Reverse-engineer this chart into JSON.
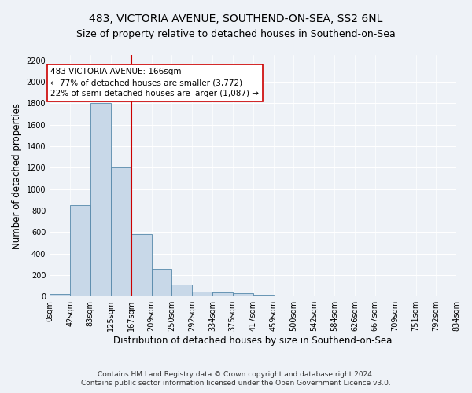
{
  "title1": "483, VICTORIA AVENUE, SOUTHEND-ON-SEA, SS2 6NL",
  "title2": "Size of property relative to detached houses in Southend-on-Sea",
  "xlabel": "Distribution of detached houses by size in Southend-on-Sea",
  "ylabel": "Number of detached properties",
  "footnote1": "Contains HM Land Registry data © Crown copyright and database right 2024.",
  "footnote2": "Contains public sector information licensed under the Open Government Licence v3.0.",
  "bar_edges": [
    0,
    42,
    83,
    125,
    167,
    209,
    250,
    292,
    334,
    375,
    417,
    459,
    500,
    542,
    584,
    626,
    667,
    709,
    751,
    792,
    834
  ],
  "bar_heights": [
    25,
    850,
    1800,
    1200,
    580,
    255,
    115,
    45,
    40,
    30,
    18,
    12,
    0,
    0,
    0,
    0,
    0,
    0,
    0,
    0
  ],
  "bar_color": "#c8d8e8",
  "bar_edgecolor": "#5588aa",
  "vline_x": 167,
  "vline_color": "#cc0000",
  "annotation_text": "483 VICTORIA AVENUE: 166sqm\n← 77% of detached houses are smaller (3,772)\n22% of semi-detached houses are larger (1,087) →",
  "annotation_box_color": "#ffffff",
  "annotation_box_edgecolor": "#cc0000",
  "ylim": [
    0,
    2250
  ],
  "yticks": [
    0,
    200,
    400,
    600,
    800,
    1000,
    1200,
    1400,
    1600,
    1800,
    2000,
    2200
  ],
  "tick_labels": [
    "0sqm",
    "42sqm",
    "83sqm",
    "125sqm",
    "167sqm",
    "209sqm",
    "250sqm",
    "292sqm",
    "334sqm",
    "375sqm",
    "417sqm",
    "459sqm",
    "500sqm",
    "542sqm",
    "584sqm",
    "626sqm",
    "667sqm",
    "709sqm",
    "751sqm",
    "792sqm",
    "834sqm"
  ],
  "background_color": "#eef2f7",
  "grid_color": "#ffffff",
  "title1_fontsize": 10,
  "title2_fontsize": 9,
  "axis_label_fontsize": 8.5,
  "tick_fontsize": 7,
  "annotation_fontsize": 7.5,
  "footnote_fontsize": 6.5
}
